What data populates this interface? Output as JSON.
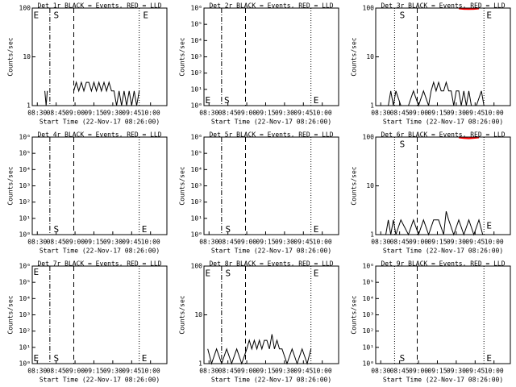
{
  "chart_data": [
    {
      "type": "line",
      "title": "Det 1r BLACK = Events, RED = LLD",
      "x_label": "Start Time (22-Nov-17 08:26:00)",
      "y_label": "Counts/sec",
      "log_y": true,
      "xlim": [
        0,
        107
      ],
      "xticks": [
        {
          "value": 4,
          "label": "08:30"
        },
        {
          "value": 19,
          "label": "08:45"
        },
        {
          "value": 34,
          "label": "09:00"
        },
        {
          "value": 49,
          "label": "09:15"
        },
        {
          "value": 64,
          "label": "09:30"
        },
        {
          "value": 79,
          "label": "09:45"
        },
        {
          "value": 94,
          "label": "10:00"
        }
      ],
      "ylim": [
        1,
        100
      ],
      "yticks": [
        1,
        10,
        100
      ],
      "vlines": [
        {
          "x": 14,
          "style": "dashdot"
        },
        {
          "x": 33,
          "style": "dashed"
        },
        {
          "x": 85,
          "style": "dotted"
        }
      ],
      "annotations": [
        {
          "text": "E",
          "x": 1,
          "y": 70
        },
        {
          "text": "S",
          "x": 17,
          "y": 70
        },
        {
          "text": "E",
          "x": 88,
          "y": 70
        }
      ],
      "series": [
        {
          "color": "#000000",
          "x": [
            10,
            11,
            12,
            20,
            33,
            35,
            37,
            39,
            41,
            43,
            45,
            47,
            49,
            51,
            53,
            55,
            57,
            59,
            61,
            63,
            65,
            67,
            69,
            71,
            73,
            75,
            77,
            79,
            81,
            83,
            85
          ],
          "values": [
            2,
            1,
            2,
            null,
            2,
            3,
            2,
            3,
            2,
            3,
            3,
            2,
            3,
            2,
            3,
            2,
            3,
            2,
            3,
            2,
            2,
            1,
            2,
            1,
            2,
            1,
            2,
            1,
            2,
            1,
            2
          ]
        }
      ]
    },
    {
      "type": "line",
      "title": "Det 2r BLACK = Events, RED = LLD",
      "x_label": "Start Time (22-Nov-17 08:26:00)",
      "y_label": "Counts/sec",
      "log_y": true,
      "xlim": [
        0,
        107
      ],
      "xticks": [
        {
          "value": 4,
          "label": "08:30"
        },
        {
          "value": 19,
          "label": "08:45"
        },
        {
          "value": 34,
          "label": "09:00"
        },
        {
          "value": 49,
          "label": "09:15"
        },
        {
          "value": 64,
          "label": "09:30"
        },
        {
          "value": 79,
          "label": "09:45"
        },
        {
          "value": 94,
          "label": "10:00"
        }
      ],
      "ylim": [
        1,
        1000000
      ],
      "yticks": [
        {
          "value": 1,
          "label": "10⁰"
        },
        {
          "value": 10,
          "label": "10¹"
        },
        {
          "value": 100,
          "label": "10²"
        },
        {
          "value": 1000,
          "label": "10³"
        },
        {
          "value": 10000,
          "label": "10⁴"
        },
        {
          "value": 100000,
          "label": "10⁵"
        },
        {
          "value": 1000000,
          "label": "10⁶"
        }
      ],
      "vlines": [
        {
          "x": 14,
          "style": "dashdot"
        },
        {
          "x": 33,
          "style": "dashed"
        },
        {
          "x": 85,
          "style": "dotted"
        }
      ],
      "annotations": [
        {
          "text": "E",
          "x": 1,
          "y": 2
        },
        {
          "text": "S",
          "x": 16,
          "y": 2
        },
        {
          "text": "E",
          "x": 87,
          "y": 2
        }
      ],
      "series": []
    },
    {
      "type": "line",
      "title": "Det 3r BLACK = Events, RED = LLD",
      "x_label": "Start Time (22-Nov-17 08:26:00)",
      "y_label": "Counts/sec",
      "log_y": true,
      "xlim": [
        0,
        107
      ],
      "xticks": [
        {
          "value": 4,
          "label": "08:30"
        },
        {
          "value": 19,
          "label": "08:45"
        },
        {
          "value": 34,
          "label": "09:00"
        },
        {
          "value": 49,
          "label": "09:15"
        },
        {
          "value": 64,
          "label": "09:30"
        },
        {
          "value": 79,
          "label": "09:45"
        },
        {
          "value": 94,
          "label": "10:00"
        }
      ],
      "ylim": [
        1,
        100
      ],
      "yticks": [
        1,
        10,
        100
      ],
      "vlines": [
        {
          "x": 15,
          "style": "dotted"
        },
        {
          "x": 33,
          "style": "dashed"
        },
        {
          "x": 86,
          "style": "dotted"
        }
      ],
      "annotations": [
        {
          "text": "S",
          "x": 19,
          "y": 70
        },
        {
          "text": "E",
          "x": 88,
          "y": 70
        }
      ],
      "series": [
        {
          "color": "#000000",
          "x": [
            10,
            12,
            14,
            16,
            20,
            26,
            30,
            34,
            38,
            42,
            44,
            46,
            48,
            50,
            52,
            54,
            56,
            58,
            60,
            62,
            64,
            66,
            68,
            70,
            72,
            74,
            76,
            80,
            84,
            86
          ],
          "values": [
            1,
            2,
            1,
            2,
            1,
            1,
            2,
            1,
            2,
            1,
            2,
            3,
            2,
            3,
            2,
            2,
            3,
            2,
            2,
            1,
            2,
            2,
            1,
            2,
            1,
            2,
            1,
            1,
            2,
            1
          ]
        },
        {
          "color": "#ff0000",
          "x": [
            66,
            70,
            74,
            78,
            82
          ],
          "values": [
            98,
            96,
            95,
            96,
            98
          ]
        }
      ]
    },
    {
      "type": "line",
      "title": "Det 4r BLACK = Events, RED = LLD",
      "x_label": "Start Time (22-Nov-17 08:26:00)",
      "y_label": "Counts/sec",
      "log_y": true,
      "xlim": [
        0,
        107
      ],
      "xticks": [
        {
          "value": 4,
          "label": "08:30"
        },
        {
          "value": 19,
          "label": "08:45"
        },
        {
          "value": 34,
          "label": "09:00"
        },
        {
          "value": 49,
          "label": "09:15"
        },
        {
          "value": 64,
          "label": "09:30"
        },
        {
          "value": 79,
          "label": "09:45"
        },
        {
          "value": 94,
          "label": "10:00"
        }
      ],
      "ylim": [
        1,
        1000000
      ],
      "yticks": [
        {
          "value": 1,
          "label": "10⁰"
        },
        {
          "value": 10,
          "label": "10¹"
        },
        {
          "value": 100,
          "label": "10²"
        },
        {
          "value": 1000,
          "label": "10³"
        },
        {
          "value": 10000,
          "label": "10⁴"
        },
        {
          "value": 100000,
          "label": "10⁵"
        },
        {
          "value": 1000000,
          "label": "10⁶"
        }
      ],
      "vlines": [
        {
          "x": 14,
          "style": "dashdot"
        },
        {
          "x": 33,
          "style": "dashed"
        },
        {
          "x": 85,
          "style": "dotted"
        }
      ],
      "annotations": [
        {
          "text": "S",
          "x": 17,
          "y": 2
        },
        {
          "text": "E",
          "x": 87,
          "y": 2
        }
      ],
      "series": []
    },
    {
      "type": "line",
      "title": "Det 5r BLACK = Events, RED = LLD",
      "x_label": "Start Time (22-Nov-17 08:26:00)",
      "y_label": "Counts/sec",
      "log_y": true,
      "xlim": [
        0,
        107
      ],
      "xticks": [
        {
          "value": 4,
          "label": "08:30"
        },
        {
          "value": 19,
          "label": "08:45"
        },
        {
          "value": 34,
          "label": "09:00"
        },
        {
          "value": 49,
          "label": "09:15"
        },
        {
          "value": 64,
          "label": "09:30"
        },
        {
          "value": 79,
          "label": "09:45"
        },
        {
          "value": 94,
          "label": "10:00"
        }
      ],
      "ylim": [
        1,
        1000000
      ],
      "yticks": [
        {
          "value": 1,
          "label": "10⁰"
        },
        {
          "value": 10,
          "label": "10¹"
        },
        {
          "value": 100,
          "label": "10²"
        },
        {
          "value": 1000,
          "label": "10³"
        },
        {
          "value": 10000,
          "label": "10⁴"
        },
        {
          "value": 100000,
          "label": "10⁵"
        },
        {
          "value": 1000000,
          "label": "10⁶"
        }
      ],
      "vlines": [
        {
          "x": 14,
          "style": "dashdot"
        },
        {
          "x": 33,
          "style": "dashed"
        },
        {
          "x": 85,
          "style": "dotted"
        }
      ],
      "annotations": [
        {
          "text": "S",
          "x": 17,
          "y": 2
        },
        {
          "text": "E",
          "x": 87,
          "y": 2
        }
      ],
      "series": []
    },
    {
      "type": "line",
      "title": "Det 6r BLACK = Events, RED = LLD",
      "x_label": "Start Time (22-Nov-17 08:26:00)",
      "y_label": "Counts/sec",
      "log_y": true,
      "xlim": [
        0,
        107
      ],
      "xticks": [
        {
          "value": 4,
          "label": "08:30"
        },
        {
          "value": 19,
          "label": "08:45"
        },
        {
          "value": 34,
          "label": "09:00"
        },
        {
          "value": 49,
          "label": "09:15"
        },
        {
          "value": 64,
          "label": "09:30"
        },
        {
          "value": 79,
          "label": "09:45"
        },
        {
          "value": 94,
          "label": "10:00"
        }
      ],
      "ylim": [
        1,
        100
      ],
      "yticks": [
        1,
        10,
        100
      ],
      "vlines": [
        {
          "x": 15,
          "style": "dotted"
        },
        {
          "x": 33,
          "style": "dashed"
        },
        {
          "x": 86,
          "style": "dotted"
        }
      ],
      "annotations": [
        {
          "text": "S",
          "x": 19,
          "y": 70
        },
        {
          "text": "E",
          "x": 88,
          "y": 1.5
        }
      ],
      "series": [
        {
          "color": "#000000",
          "x": [
            8,
            10,
            12,
            14,
            16,
            20,
            26,
            30,
            34,
            38,
            42,
            46,
            50,
            54,
            56,
            58,
            62,
            66,
            70,
            74,
            78,
            82,
            85
          ],
          "values": [
            1,
            2,
            1,
            2,
            1,
            2,
            1,
            2,
            1,
            2,
            1,
            2,
            2,
            1,
            3,
            2,
            1,
            2,
            1,
            2,
            1,
            2,
            1
          ]
        },
        {
          "color": "#ff0000",
          "x": [
            66,
            70,
            74,
            78,
            82
          ],
          "values": [
            98,
            95,
            94,
            96,
            98
          ]
        }
      ]
    },
    {
      "type": "line",
      "title": "Det 7r BLACK = Events, RED = LLD",
      "x_label": "Start Time (22-Nov-17 08:26:00)",
      "y_label": "Counts/sec",
      "log_y": true,
      "xlim": [
        0,
        107
      ],
      "xticks": [
        {
          "value": 4,
          "label": "08:30"
        },
        {
          "value": 19,
          "label": "08:45"
        },
        {
          "value": 34,
          "label": "09:00"
        },
        {
          "value": 49,
          "label": "09:15"
        },
        {
          "value": 64,
          "label": "09:30"
        },
        {
          "value": 79,
          "label": "09:45"
        },
        {
          "value": 94,
          "label": "10:00"
        }
      ],
      "ylim": [
        1,
        1000000
      ],
      "yticks": [
        {
          "value": 1,
          "label": "10⁰"
        },
        {
          "value": 10,
          "label": "10¹"
        },
        {
          "value": 100,
          "label": "10²"
        },
        {
          "value": 1000,
          "label": "10³"
        },
        {
          "value": 10000,
          "label": "10⁴"
        },
        {
          "value": 100000,
          "label": "10⁵"
        },
        {
          "value": 1000000,
          "label": "10⁶"
        }
      ],
      "vlines": [
        {
          "x": 14,
          "style": "dashdot"
        },
        {
          "x": 33,
          "style": "dashed"
        },
        {
          "x": 85,
          "style": "dotted"
        }
      ],
      "annotations": [
        {
          "text": "E",
          "x": 1,
          "y": 400000
        },
        {
          "text": "E",
          "x": 1,
          "y": 2
        },
        {
          "text": "S",
          "x": 17,
          "y": 2
        },
        {
          "text": "E",
          "x": 87,
          "y": 2
        }
      ],
      "series": []
    },
    {
      "type": "line",
      "title": "Det 8r BLACK = Events, RED = LLD",
      "x_label": "Start Time (22-Nov-17 08:26:00)",
      "y_label": "Counts/sec",
      "log_y": true,
      "xlim": [
        0,
        107
      ],
      "xticks": [
        {
          "value": 4,
          "label": "08:30"
        },
        {
          "value": 19,
          "label": "08:45"
        },
        {
          "value": 34,
          "label": "09:00"
        },
        {
          "value": 49,
          "label": "09:15"
        },
        {
          "value": 64,
          "label": "09:30"
        },
        {
          "value": 79,
          "label": "09:45"
        },
        {
          "value": 94,
          "label": "10:00"
        }
      ],
      "ylim": [
        1,
        100
      ],
      "yticks": [
        1,
        10,
        100
      ],
      "vlines": [
        {
          "x": 14,
          "style": "dashdot"
        },
        {
          "x": 33,
          "style": "dashed"
        },
        {
          "x": 85,
          "style": "dotted"
        }
      ],
      "annotations": [
        {
          "text": "E",
          "x": 1,
          "y": 70
        },
        {
          "text": "S",
          "x": 17,
          "y": 70
        },
        {
          "text": "E",
          "x": 87,
          "y": 70
        }
      ],
      "series": [
        {
          "color": "#000000",
          "x": [
            3,
            6,
            10,
            14,
            18,
            22,
            26,
            30,
            34,
            36,
            38,
            40,
            42,
            44,
            46,
            48,
            50,
            52,
            54,
            56,
            58,
            60,
            62,
            66,
            70,
            74,
            78,
            82,
            85
          ],
          "values": [
            2,
            1,
            2,
            1,
            2,
            1,
            2,
            1,
            2,
            3,
            2,
            3,
            2,
            3,
            2,
            3,
            3,
            2,
            4,
            2,
            3,
            2,
            2,
            1,
            2,
            1,
            2,
            1,
            2
          ]
        }
      ]
    },
    {
      "type": "line",
      "title": "Det 9r BLACK = Events, RED = LLD",
      "x_label": "Start Time (22-Nov-17 08:26:00)",
      "y_label": "Counts/sec",
      "log_y": true,
      "xlim": [
        0,
        107
      ],
      "xticks": [
        {
          "value": 4,
          "label": "08:30"
        },
        {
          "value": 19,
          "label": "08:45"
        },
        {
          "value": 34,
          "label": "09:00"
        },
        {
          "value": 49,
          "label": "09:15"
        },
        {
          "value": 64,
          "label": "09:30"
        },
        {
          "value": 79,
          "label": "09:45"
        },
        {
          "value": 94,
          "label": "10:00"
        }
      ],
      "ylim": [
        1,
        1000000
      ],
      "yticks": [
        {
          "value": 1,
          "label": "10⁰"
        },
        {
          "value": 10,
          "label": "10¹"
        },
        {
          "value": 100,
          "label": "10²"
        },
        {
          "value": 1000,
          "label": "10³"
        },
        {
          "value": 10000,
          "label": "10⁴"
        },
        {
          "value": 100000,
          "label": "10⁵"
        },
        {
          "value": 1000000,
          "label": "10⁶"
        }
      ],
      "vlines": [
        {
          "x": 15,
          "style": "dotted"
        },
        {
          "x": 33,
          "style": "dashed"
        },
        {
          "x": 86,
          "style": "dotted"
        }
      ],
      "annotations": [
        {
          "text": "S",
          "x": 19,
          "y": 2
        },
        {
          "text": "E",
          "x": 88,
          "y": 2
        }
      ],
      "series": []
    }
  ]
}
